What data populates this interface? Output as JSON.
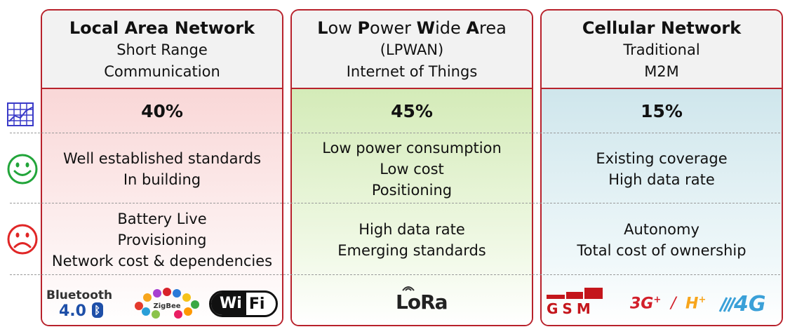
{
  "columns": [
    {
      "title": "Local Area Network",
      "subtitle1": "Short Range",
      "subtitle2": "Communication",
      "share": "40%",
      "pros": [
        "Well established standards",
        "In building"
      ],
      "cons": [
        "Battery Live",
        "Provisioning",
        "Network cost & dependencies"
      ]
    },
    {
      "title_parts": [
        "L",
        "ow ",
        "P",
        "ower ",
        "W",
        "ide ",
        "A",
        "rea"
      ],
      "subtitle1": "(LPWAN)",
      "subtitle2": "Internet of Things",
      "share": "45%",
      "pros": [
        "Low power consumption",
        "Low cost",
        "Positioning"
      ],
      "cons": [
        "High data rate",
        "Emerging standards"
      ]
    },
    {
      "title": "Cellular Network",
      "subtitle1": "Traditional",
      "subtitle2": "M2M",
      "share": "15%",
      "pros": [
        "Existing coverage",
        "High data rate"
      ],
      "cons": [
        "Autonomy",
        "Total cost of ownership"
      ]
    }
  ],
  "logos": {
    "bluetooth_word": "Bluetooth",
    "bluetooth_ver": "4.0",
    "zigbee": "ZigBee",
    "wifi_a": "Wi",
    "wifi_b": "Fi",
    "lora": "LoRa",
    "gsm": "GSM",
    "g3": "3G",
    "g3plus": "+",
    "slash": "/",
    "hplus": "H",
    "hplus_plus": "+",
    "g4": "4G"
  },
  "colors": {
    "border": "#b8222c",
    "lan_tint": "#f9d7d7",
    "lpwan_tint": "#d4ebb8",
    "cell_tint": "#cfe6ec",
    "happy": "#22a53a",
    "sad": "#e02626",
    "chart_icon": "#3a3ac8"
  },
  "icons": [
    "bar-chart-icon",
    "smiley-happy-icon",
    "smiley-sad-icon"
  ]
}
